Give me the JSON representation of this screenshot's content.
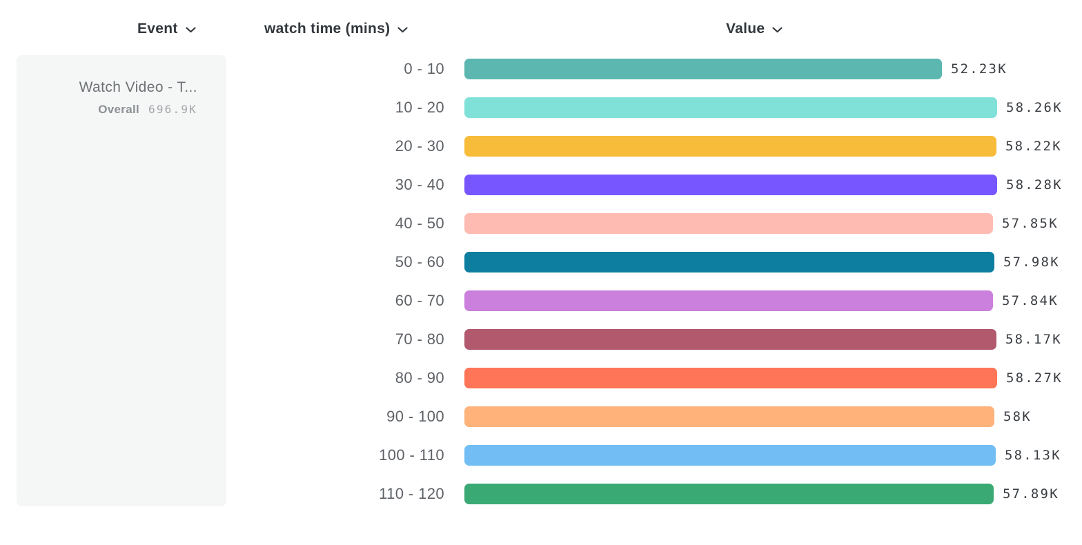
{
  "columns": {
    "event": {
      "label": "Event"
    },
    "bucket": {
      "label": "watch time (mins)"
    },
    "value": {
      "label": "Value"
    }
  },
  "event_card": {
    "name": "Watch Video - T...",
    "overall_label": "Overall",
    "overall_value": "696.9K"
  },
  "chart_data": {
    "type": "bar",
    "orientation": "horizontal",
    "categories": [
      "0 - 10",
      "10 - 20",
      "20 - 30",
      "30 - 40",
      "40 - 50",
      "50 - 60",
      "60 - 70",
      "70 - 80",
      "80 - 90",
      "90 - 100",
      "100 - 110",
      "110 - 120"
    ],
    "values": [
      52230,
      58260,
      58220,
      58280,
      57850,
      57980,
      57840,
      58170,
      58270,
      58000,
      58130,
      57890
    ],
    "value_labels": [
      "52.23K",
      "58.26K",
      "58.22K",
      "58.28K",
      "57.85K",
      "57.98K",
      "57.84K",
      "58.17K",
      "58.27K",
      "58K",
      "58.13K",
      "57.89K"
    ],
    "bar_colors": [
      "#5BB7AF",
      "#80E1D9",
      "#F8BC3B",
      "#7856FF",
      "#FEBBB2",
      "#0D7EA0",
      "#CA80DC",
      "#B2596E",
      "#FF7557",
      "#FFB27A",
      "#72BEF4",
      "#3BA974"
    ],
    "xlabel": "Value",
    "ylabel": "watch time (mins)",
    "xlim": [
      0,
      58280
    ],
    "grid": false,
    "legend": false
  },
  "layout_colors": {
    "card_background": "#f5f6f6",
    "header_text": "#33383d",
    "bucket_label_text": "#5d6166",
    "value_label_text": "#3a3e43"
  }
}
